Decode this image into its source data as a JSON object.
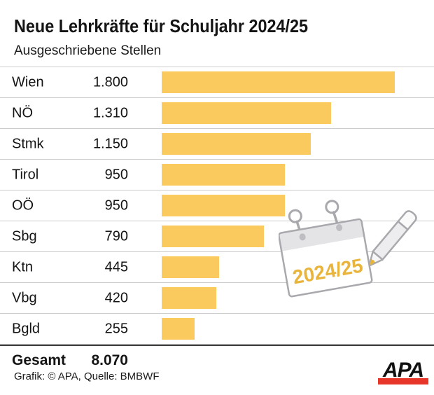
{
  "title": "Neue Lehrkräfte für Schuljahr 2024/25",
  "subtitle": "Ausgeschriebene Stellen",
  "chart_data": {
    "type": "bar",
    "orientation": "horizontal",
    "title": "Neue Lehrkräfte für Schuljahr 2024/25",
    "subtitle": "Ausgeschriebene Stellen",
    "categories": [
      "Wien",
      "NÖ",
      "Stmk",
      "Tirol",
      "OÖ",
      "Sbg",
      "Ktn",
      "Vbg",
      "Bgld"
    ],
    "values": [
      1800,
      1310,
      1150,
      950,
      950,
      790,
      445,
      420,
      255
    ],
    "value_labels": [
      "1.800",
      "1.310",
      "1.150",
      "950",
      "950",
      "790",
      "445",
      "420",
      "255"
    ],
    "xmax": 1800,
    "grid": "row-separators",
    "bar_color": "#FBCA5E",
    "total": {
      "label": "Gesamt",
      "value": 8070,
      "value_label": "8.070"
    }
  },
  "illustration": {
    "calendar_text": "2024/25",
    "accent_color": "#E9B43B"
  },
  "footer": {
    "credit": "Grafik: © APA, Quelle: BMBWF",
    "logo_text": "APA",
    "logo_bar_color": "#E8362A"
  }
}
